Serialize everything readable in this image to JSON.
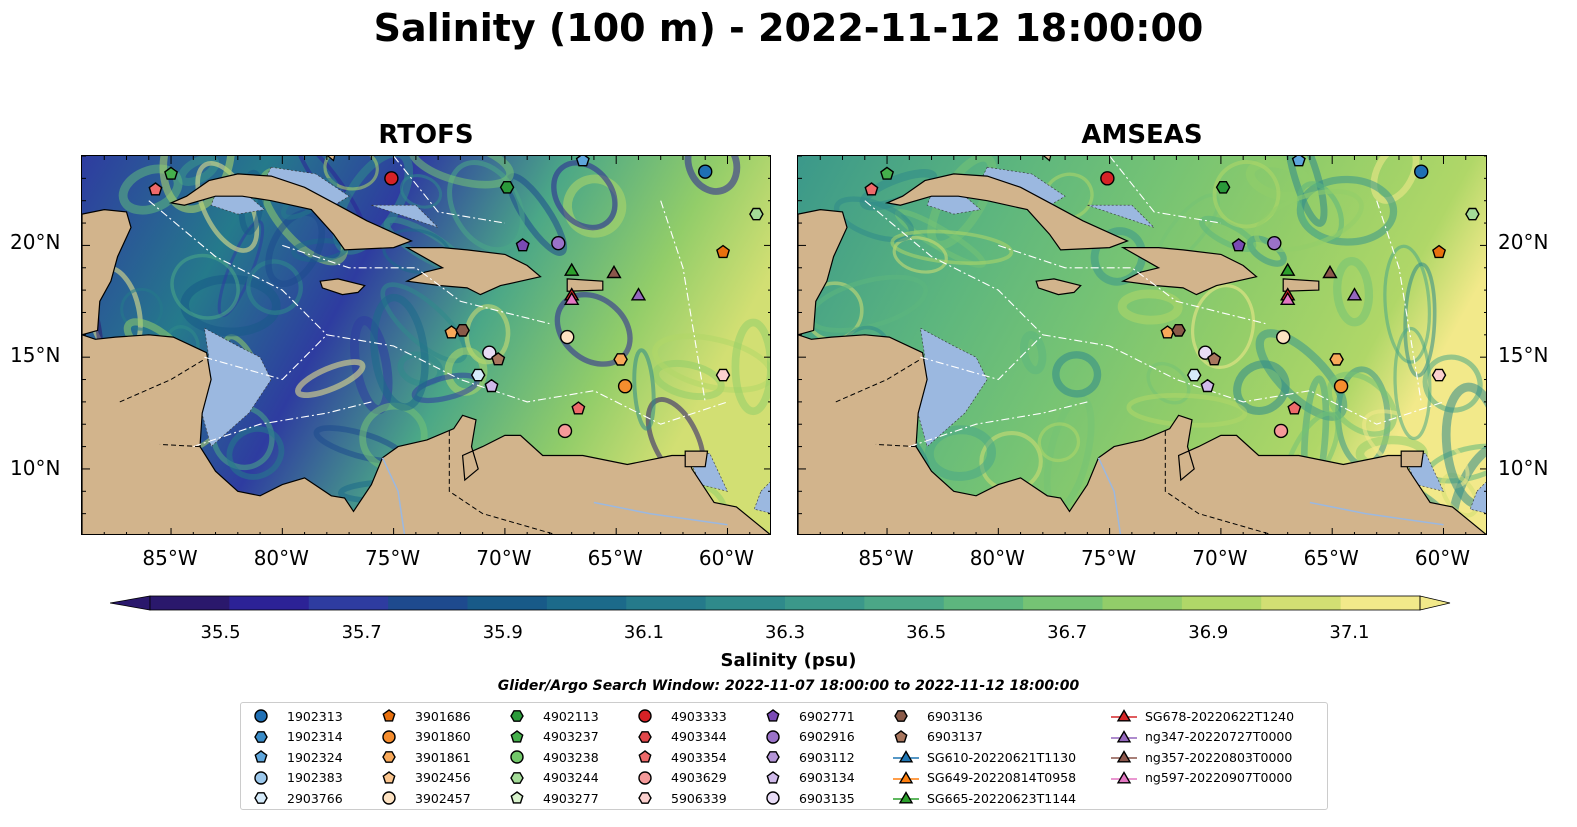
{
  "title": "Salinity (100 m) - 2022-11-12 18:00:00",
  "panels": [
    {
      "title": "RTOFS"
    },
    {
      "title": "AMSEAS"
    }
  ],
  "lat_ticks": [
    "20°N",
    "15°N",
    "10°N"
  ],
  "lon_ticks": [
    "85°W",
    "80°W",
    "75°W",
    "70°W",
    "65°W",
    "60°W"
  ],
  "colorbar": {
    "label": "Salinity (psu)",
    "ticks": [
      "35.5",
      "35.7",
      "35.9",
      "36.1",
      "36.3",
      "36.5",
      "36.7",
      "36.9",
      "37.1"
    ],
    "range": [
      35.4,
      37.2
    ],
    "colors": [
      "#2a186c",
      "#2c2296",
      "#2e3ca0",
      "#1e4a8e",
      "#185a88",
      "#1c6a8a",
      "#257a8b",
      "#2f8a8b",
      "#3b988a",
      "#4ba787",
      "#5db67e",
      "#75c374",
      "#92cd69",
      "#b0d768",
      "#d2df73",
      "#f2e98a"
    ]
  },
  "map_colors": {
    "land": "#d2b48c",
    "shallow": "#9bb8e0"
  },
  "search_window": "Glider/Argo Search Window: 2022-11-07 18:00:00 to 2022-11-12 18:00:00",
  "legend": {
    "columns": [
      [
        {
          "label": "1902313",
          "marker": "circle",
          "color": "#1f6fb4"
        },
        {
          "label": "1902314",
          "marker": "hexagon",
          "color": "#3a8cc8"
        },
        {
          "label": "1902324",
          "marker": "pentagon",
          "color": "#5ea6dc"
        },
        {
          "label": "1902383",
          "marker": "circle",
          "color": "#9cc8ec"
        },
        {
          "label": "2903766",
          "marker": "hexagon",
          "color": "#d6ebfa"
        }
      ],
      [
        {
          "label": "3901686",
          "marker": "pentagon",
          "color": "#e8700e"
        },
        {
          "label": "3901860",
          "marker": "circle",
          "color": "#f58d2e"
        },
        {
          "label": "3901861",
          "marker": "hexagon",
          "color": "#f8a95a"
        },
        {
          "label": "3902456",
          "marker": "pentagon",
          "color": "#fbc58e"
        },
        {
          "label": "3902457",
          "marker": "circle",
          "color": "#fde2c2"
        }
      ],
      [
        {
          "label": "4902113",
          "marker": "hexagon",
          "color": "#2a9a3a"
        },
        {
          "label": "4903237",
          "marker": "pentagon",
          "color": "#45b04c"
        },
        {
          "label": "4903238",
          "marker": "circle",
          "color": "#72c86a"
        },
        {
          "label": "4903244",
          "marker": "hexagon",
          "color": "#a4dc98"
        },
        {
          "label": "4903277",
          "marker": "pentagon",
          "color": "#d8f2cc"
        }
      ],
      [
        {
          "label": "4903333",
          "marker": "circle",
          "color": "#d62226"
        },
        {
          "label": "4903344",
          "marker": "hexagon",
          "color": "#e0474a"
        },
        {
          "label": "4903354",
          "marker": "pentagon",
          "color": "#ee6a6a"
        },
        {
          "label": "4903629",
          "marker": "circle",
          "color": "#f59a9a"
        },
        {
          "label": "5906339",
          "marker": "hexagon",
          "color": "#fbd0ce"
        }
      ],
      [
        {
          "label": "6902771",
          "marker": "pentagon",
          "color": "#7a4ab4"
        },
        {
          "label": "6902916",
          "marker": "circle",
          "color": "#9a72c8"
        },
        {
          "label": "6903112",
          "marker": "hexagon",
          "color": "#b596d8"
        },
        {
          "label": "6903134",
          "marker": "pentagon",
          "color": "#d0baea"
        },
        {
          "label": "6903135",
          "marker": "circle",
          "color": "#e8dcf6"
        }
      ],
      [
        {
          "label": "6903136",
          "marker": "hexagon",
          "color": "#8a5a48"
        },
        {
          "label": "6903137",
          "marker": "pentagon",
          "color": "#a8765e"
        },
        {
          "label": "SG610-20220621T1130",
          "marker": "triangle",
          "color": "#1f77b4"
        },
        {
          "label": "SG649-20220814T0958",
          "marker": "triangle",
          "color": "#ff7f0e"
        },
        {
          "label": "SG665-20220623T1144",
          "marker": "triangle",
          "color": "#2ca02c"
        }
      ],
      [
        {
          "label": "SG678-20220622T1240",
          "marker": "triangle",
          "color": "#d62728"
        },
        {
          "label": "ng347-20220727T0000",
          "marker": "triangle",
          "color": "#9467bd"
        },
        {
          "label": "ng357-20220803T0000",
          "marker": "triangle",
          "color": "#8c564b"
        },
        {
          "label": "ng597-20220907T0000",
          "marker": "triangle",
          "color": "#e377c2"
        }
      ]
    ]
  },
  "markers_on_map": [
    {
      "lon": -85.0,
      "lat": 23.2,
      "marker": "pentagon",
      "color": "#45b04c"
    },
    {
      "lon": -85.7,
      "lat": 22.5,
      "marker": "pentagon",
      "color": "#ee6a6a"
    },
    {
      "lon": -75.1,
      "lat": 23.0,
      "marker": "circle",
      "color": "#d62226"
    },
    {
      "lon": -69.9,
      "lat": 22.6,
      "marker": "hexagon",
      "color": "#2a9a3a"
    },
    {
      "lon": -66.5,
      "lat": 23.8,
      "marker": "pentagon",
      "color": "#5ea6dc"
    },
    {
      "lon": -61.0,
      "lat": 23.3,
      "marker": "circle",
      "color": "#1f6fb4"
    },
    {
      "lon": -58.7,
      "lat": 21.4,
      "marker": "hexagon",
      "color": "#a4dc98"
    },
    {
      "lon": -69.2,
      "lat": 20.0,
      "marker": "pentagon",
      "color": "#7a4ab4"
    },
    {
      "lon": -67.6,
      "lat": 20.1,
      "marker": "circle",
      "color": "#9a72c8"
    },
    {
      "lon": -60.2,
      "lat": 19.7,
      "marker": "pentagon",
      "color": "#e8700e"
    },
    {
      "lon": -67.0,
      "lat": 18.9,
      "marker": "triangle",
      "color": "#2ca02c"
    },
    {
      "lon": -65.1,
      "lat": 18.8,
      "marker": "triangle",
      "color": "#8c564b"
    },
    {
      "lon": -67.0,
      "lat": 17.8,
      "marker": "triangle",
      "color": "#d62728"
    },
    {
      "lon": -67.0,
      "lat": 17.6,
      "marker": "triangle",
      "color": "#e377c2"
    },
    {
      "lon": -64.0,
      "lat": 17.8,
      "marker": "triangle",
      "color": "#9467bd"
    },
    {
      "lon": -72.4,
      "lat": 16.1,
      "marker": "pentagon",
      "color": "#f8a95a"
    },
    {
      "lon": -71.9,
      "lat": 16.2,
      "marker": "hexagon",
      "color": "#8a5a48"
    },
    {
      "lon": -67.2,
      "lat": 15.9,
      "marker": "circle",
      "color": "#fde2c2"
    },
    {
      "lon": -70.7,
      "lat": 15.2,
      "marker": "circle",
      "color": "#e8dcf6"
    },
    {
      "lon": -70.3,
      "lat": 14.9,
      "marker": "pentagon",
      "color": "#a8765e"
    },
    {
      "lon": -64.8,
      "lat": 14.9,
      "marker": "hexagon",
      "color": "#f8a95a"
    },
    {
      "lon": -71.2,
      "lat": 14.2,
      "marker": "hexagon",
      "color": "#d6ebfa"
    },
    {
      "lon": -70.6,
      "lat": 13.7,
      "marker": "pentagon",
      "color": "#d0baea"
    },
    {
      "lon": -64.6,
      "lat": 13.7,
      "marker": "circle",
      "color": "#f58d2e"
    },
    {
      "lon": -60.2,
      "lat": 14.2,
      "marker": "hexagon",
      "color": "#fbd0ce"
    },
    {
      "lon": -66.7,
      "lat": 12.7,
      "marker": "pentagon",
      "color": "#ee6a6a"
    },
    {
      "lon": -67.3,
      "lat": 11.7,
      "marker": "circle",
      "color": "#f59a9a"
    }
  ],
  "extent": {
    "lon": [
      -89.0,
      -58.0
    ],
    "lat": [
      7.0,
      24.0
    ]
  }
}
